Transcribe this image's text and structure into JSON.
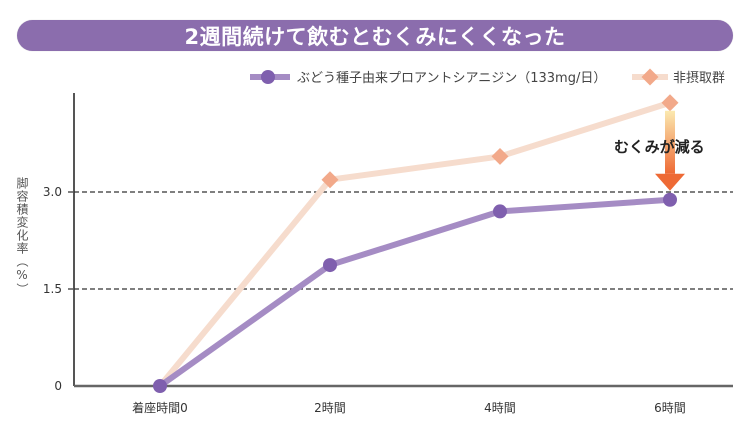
{
  "banner": {
    "title": "2週間続けて飲むとむくみにくくなった"
  },
  "colors": {
    "banner": "#8b6dad",
    "series_a_line": "#a58cc4",
    "series_a_marker": "#7f5fae",
    "series_b_line": "#f6dccd",
    "series_b_marker": "#f2a98a",
    "arrow_top": "#fbe9b0",
    "arrow_bottom": "#ee6a35"
  },
  "chart_data": {
    "type": "line",
    "title": "2週間続けて飲むとむくみにくくなった",
    "xlabel": "",
    "ylabel": "脚容積変化率（%）",
    "categories": [
      "着座時間0",
      "2時間",
      "4時間",
      "6時間"
    ],
    "yticks": [
      {
        "value": 0,
        "label": "0"
      },
      {
        "value": 1.5,
        "label": "1.5"
      },
      {
        "value": 3.0,
        "label": "3.0"
      }
    ],
    "ylim": [
      0,
      4.5
    ],
    "grid": "dashed horizontal at 1.5 and 3.0",
    "legend_position": "top-right",
    "series": [
      {
        "name": "ぶどう種子由来プロアントシアニジン（133mg/日）",
        "marker": "circle",
        "values": [
          0,
          1.87,
          2.7,
          2.88
        ]
      },
      {
        "name": "非摂取群",
        "marker": "diamond",
        "values": [
          0,
          3.19,
          3.55,
          4.38
        ]
      }
    ],
    "annotation": {
      "text": "むくみが減る",
      "category": "6時間",
      "arrow": "down from 非摂取群 to ぶどう種子由来プロアントシアニジン"
    }
  }
}
